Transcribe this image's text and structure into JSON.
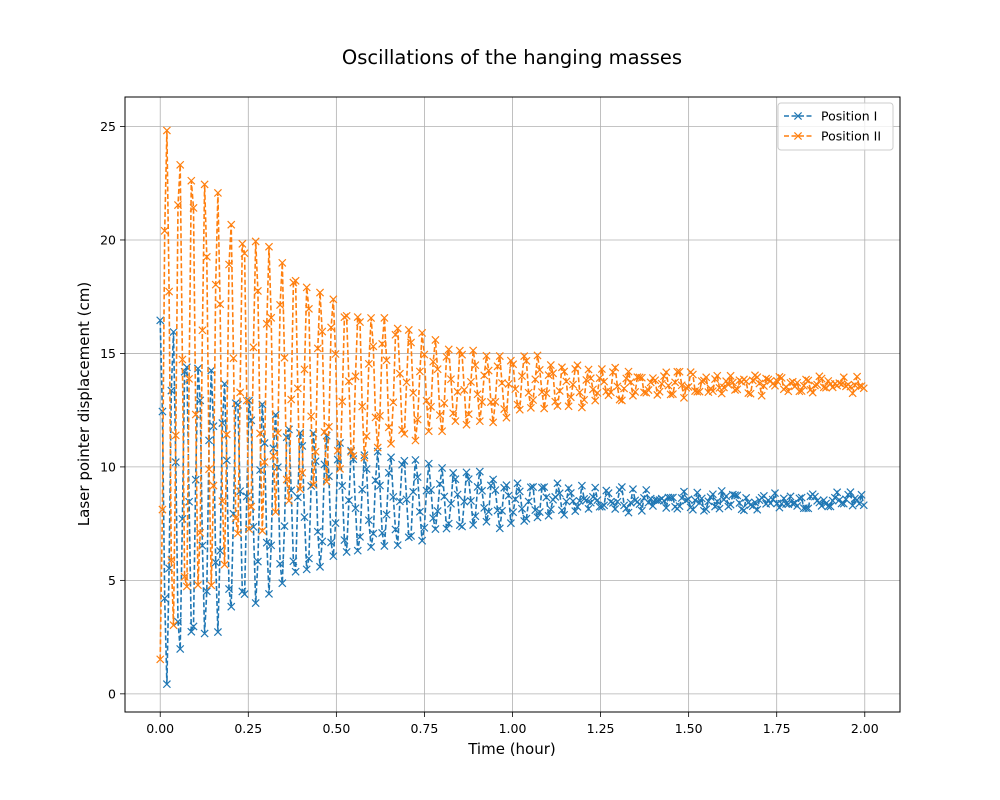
{
  "chart_data": {
    "type": "line",
    "title": "Oscillations of the hanging masses",
    "xlabel": "Time (hour)",
    "ylabel": "Laser pointer displacement (cm)",
    "xlim": [
      -0.1,
      2.1
    ],
    "ylim": [
      -0.8,
      26.3
    ],
    "xticks": [
      0.0,
      0.25,
      0.5,
      0.75,
      1.0,
      1.25,
      1.5,
      1.75,
      2.0
    ],
    "xtick_labels": [
      "0.00",
      "0.25",
      "0.50",
      "0.75",
      "1.00",
      "1.25",
      "1.50",
      "1.75",
      "2.00"
    ],
    "yticks": [
      0,
      5,
      10,
      15,
      20,
      25
    ],
    "ytick_labels": [
      "0",
      "5",
      "10",
      "15",
      "20",
      "25"
    ],
    "grid": true,
    "legend_position": "upper-right",
    "series": [
      {
        "name": "Position I",
        "color": "#1f77b4",
        "linestyle": "dashed",
        "marker": "x",
        "start": 0.0,
        "step": 0.0063,
        "equilibrium": 8.5,
        "initial_amplitude": 8.2,
        "decay": 2.25,
        "period": 0.037,
        "noise": 0.3,
        "samples": 318
      },
      {
        "name": "Position II",
        "color": "#ff7f0e",
        "linestyle": "dashed",
        "marker": "x",
        "start": 0.0,
        "step": 0.0063,
        "equilibrium": 13.6,
        "initial_amplitude": 12.0,
        "decay": 2.25,
        "period": 0.037,
        "noise": 0.25,
        "samples": 318
      }
    ]
  }
}
